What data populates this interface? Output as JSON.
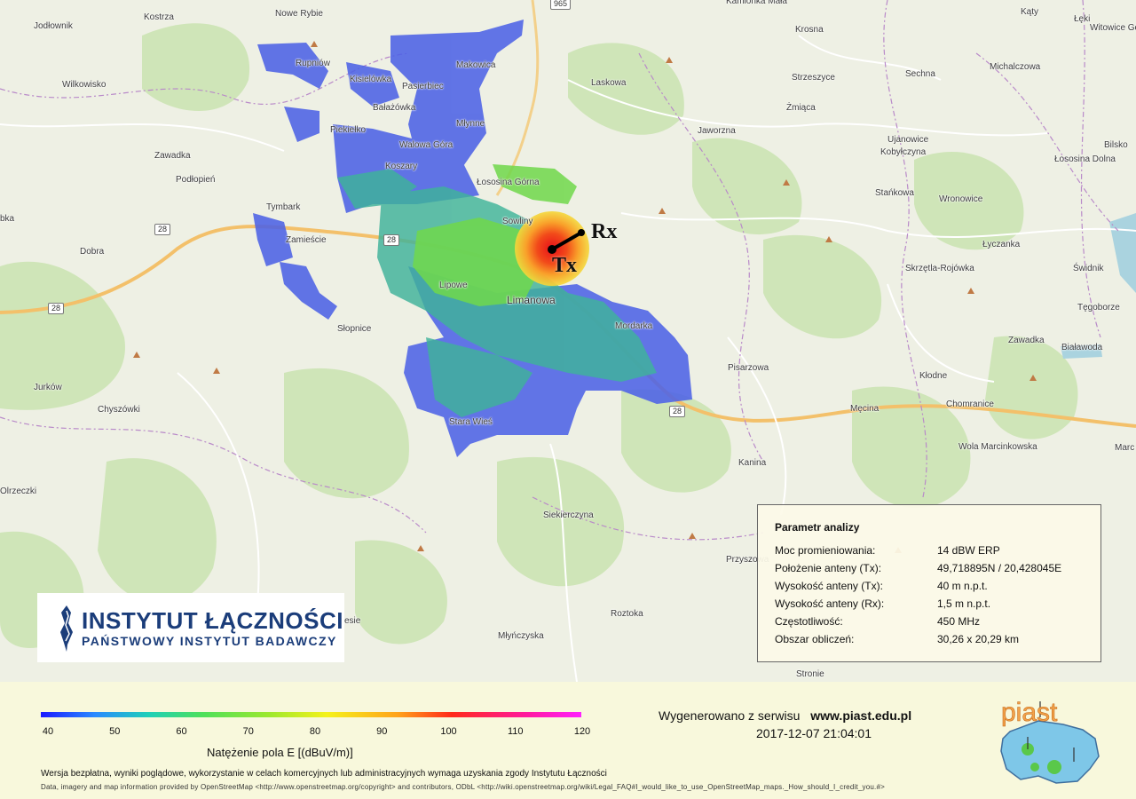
{
  "places": [
    {
      "name": "Kostrza",
      "cls": ""
    },
    {
      "name": "Nowe Rybie",
      "cls": ""
    },
    {
      "name": "Kamionka Mała",
      "cls": ""
    },
    {
      "name": "Kąty",
      "cls": ""
    },
    {
      "name": "Łęki",
      "cls": ""
    },
    {
      "name": "Witowice Gó",
      "cls": ""
    },
    {
      "name": "Jodłownik",
      "cls": ""
    },
    {
      "name": "Krosna",
      "cls": ""
    },
    {
      "name": "Rupniów",
      "cls": ""
    },
    {
      "name": "Makowica",
      "cls": ""
    },
    {
      "name": "Sechna",
      "cls": ""
    },
    {
      "name": "Michalczowa",
      "cls": ""
    },
    {
      "name": "Kisielówka",
      "cls": ""
    },
    {
      "name": "Wilkowisko",
      "cls": ""
    },
    {
      "name": "Laskowa",
      "cls": ""
    },
    {
      "name": "Strzeszyce",
      "cls": ""
    },
    {
      "name": "Pasierbiec",
      "cls": ""
    },
    {
      "name": "Żmiąca",
      "cls": ""
    },
    {
      "name": "Bałażówka",
      "cls": ""
    },
    {
      "name": "Młynne",
      "cls": ""
    },
    {
      "name": "Piekiełko",
      "cls": ""
    },
    {
      "name": "Jaworzna",
      "cls": ""
    },
    {
      "name": "Ujanowice",
      "cls": ""
    },
    {
      "name": "Walowa Góra",
      "cls": ""
    },
    {
      "name": "Kobyłczyna",
      "cls": ""
    },
    {
      "name": "Bilsko",
      "cls": ""
    },
    {
      "name": "Zawadka",
      "cls": ""
    },
    {
      "name": "Koszary",
      "cls": ""
    },
    {
      "name": "Łososina Dolna",
      "cls": ""
    },
    {
      "name": "Podłopień",
      "cls": ""
    },
    {
      "name": "Łososina Górna",
      "cls": ""
    },
    {
      "name": "Stańkowa",
      "cls": ""
    },
    {
      "name": "Wronowice",
      "cls": ""
    },
    {
      "name": "Tymbark",
      "cls": ""
    },
    {
      "name": "Sowliny",
      "cls": ""
    },
    {
      "name": "bka",
      "cls": ""
    },
    {
      "name": "Zamieście",
      "cls": ""
    },
    {
      "name": "Łyczanka",
      "cls": ""
    },
    {
      "name": "Dobra",
      "cls": ""
    },
    {
      "name": "Skrzętla-Rojówka",
      "cls": ""
    },
    {
      "name": "Świdnik",
      "cls": ""
    },
    {
      "name": "Lipowe",
      "cls": ""
    },
    {
      "name": "Limanowa",
      "cls": "town"
    },
    {
      "name": "Tęgoborze",
      "cls": ""
    },
    {
      "name": "Słopnice",
      "cls": ""
    },
    {
      "name": "Mordarka",
      "cls": ""
    },
    {
      "name": "Zawadka",
      "cls": ""
    },
    {
      "name": "Białawoda",
      "cls": ""
    },
    {
      "name": "Pisarzowa",
      "cls": ""
    },
    {
      "name": "Jurków",
      "cls": ""
    },
    {
      "name": "Kłodne",
      "cls": ""
    },
    {
      "name": "Chyszówki",
      "cls": ""
    },
    {
      "name": "Męcina",
      "cls": ""
    },
    {
      "name": "Chomranice",
      "cls": ""
    },
    {
      "name": "Stara Wieś",
      "cls": ""
    },
    {
      "name": "Wola Marcinkowska",
      "cls": ""
    },
    {
      "name": "Marc",
      "cls": ""
    },
    {
      "name": "Kanina",
      "cls": ""
    },
    {
      "name": "Olrzeczki",
      "cls": ""
    },
    {
      "name": "Siekierczyna",
      "cls": ""
    },
    {
      "name": "Przyszowa",
      "cls": ""
    },
    {
      "name": "Roztoka",
      "cls": ""
    },
    {
      "name": "Młyńczyska",
      "cls": ""
    },
    {
      "name": "Stronie",
      "cls": ""
    },
    {
      "name": "esie",
      "cls": ""
    }
  ],
  "routes": [
    "965",
    "28",
    "28",
    "28",
    "28"
  ],
  "markers": {
    "tx": "Tx",
    "rx": "Rx"
  },
  "logo": {
    "line1": "INSTYTUT ŁĄCZNOŚCI",
    "line2": "PAŃSTWOWY INSTYTUT BADAWCZY"
  },
  "params": {
    "title": "Parametr analizy",
    "rows": [
      {
        "label": "Moc promieniowania:",
        "value": "14 dBW ERP"
      },
      {
        "label": "Położenie anteny (Tx):",
        "value": "49,718895N / 20,428045E"
      },
      {
        "label": "Wysokość anteny (Tx):",
        "value": "40 m n.p.t."
      },
      {
        "label": "Wysokość anteny (Rx):",
        "value": "1,5 m n.p.t."
      },
      {
        "label": "Częstotliwość:",
        "value": "450 MHz"
      },
      {
        "label": "Obszar obliczeń:",
        "value": "30,26 x  20,29 km"
      }
    ]
  },
  "legend": {
    "ticks": [
      "40",
      "50",
      "60",
      "70",
      "80",
      "90",
      "100",
      "110",
      "120"
    ],
    "min": 40,
    "max": 120,
    "unit": "Natężenie pola E [(dBuV/m)]"
  },
  "footer": {
    "generated_prefix": "Wygenerowano z serwisu",
    "site": "www.piast.edu.pl",
    "timestamp": "2017-12-07 21:04:01",
    "disclaimer": "Wersja bezpłatna, wyniki poglądowe, wykorzystanie w celach komercyjnych lub administracyjnych wymaga uzyskania zgody Instytutu Łączności",
    "attribution": "Data, imagery and map information provided by OpenStreetMap <http://www.openstreetmap.org/copyright> and contributors, ODbL <http://wiki.openstreetmap.org/wiki/Legal_FAQ#I_would_like_to_use_OpenStreetMap_maps._How_should_I_credit_you.#>",
    "piast_logo": "piast"
  }
}
